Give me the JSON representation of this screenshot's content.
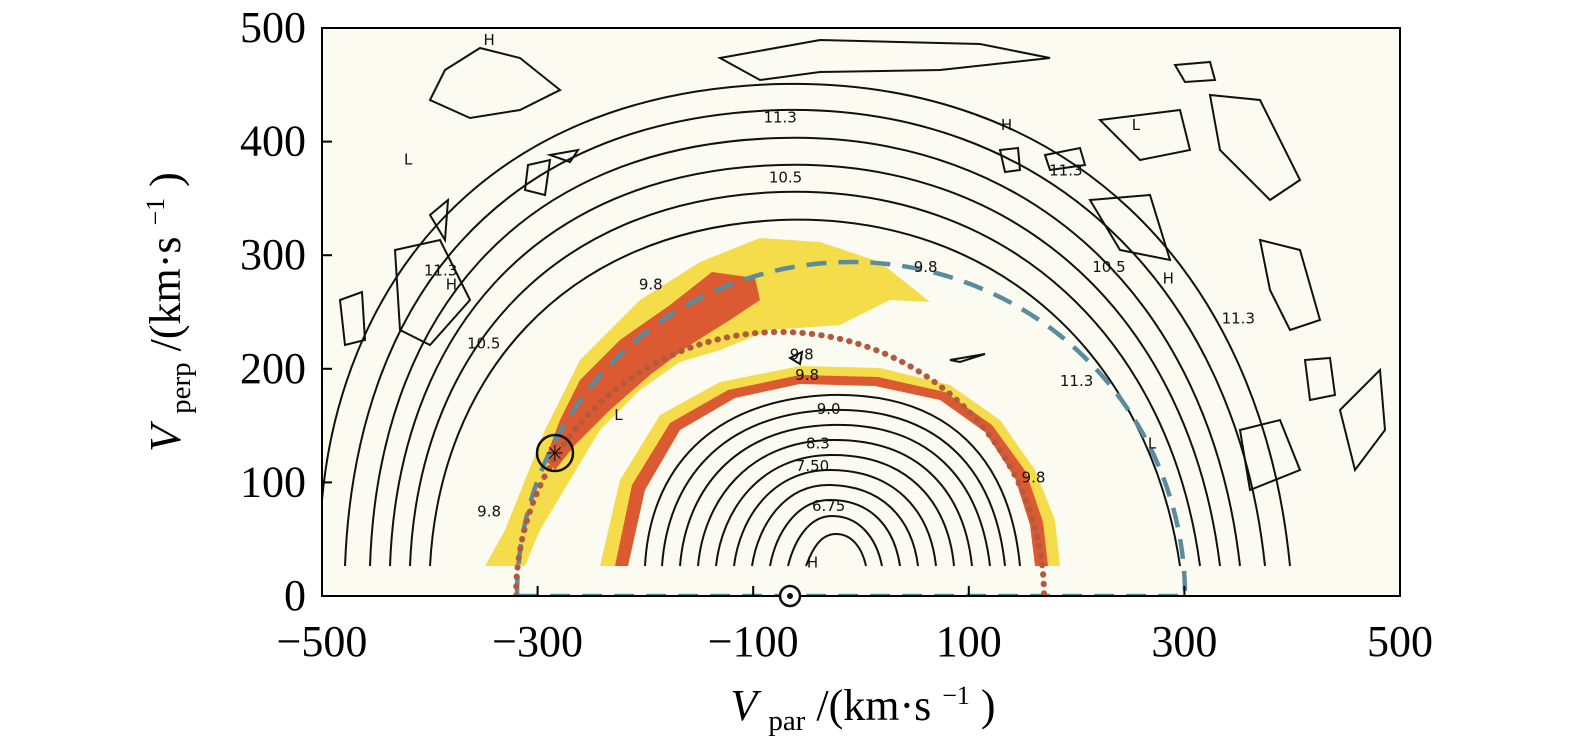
{
  "chart_data": {
    "type": "contour",
    "xlabel_var": "V",
    "xlabel_sub": "par",
    "xlabel_unit_open": "/(km·s",
    "xlabel_unit_sup": "−1",
    "xlabel_unit_close": ")",
    "ylabel_var": "V",
    "ylabel_sub": "perp",
    "ylabel_unit_open": "/(km·s",
    "ylabel_unit_sup": "−1",
    "ylabel_unit_close": ")",
    "xlim": [
      -500,
      500
    ],
    "ylim": [
      0,
      500
    ],
    "xtick_labels": [
      "−500",
      "−300",
      "−100",
      "100",
      "300",
      "500"
    ],
    "xtick_values": [
      -500,
      -300,
      -100,
      100,
      300,
      500
    ],
    "ytick_labels": [
      "0",
      "100",
      "200",
      "300",
      "400",
      "500"
    ],
    "ytick_values": [
      0,
      100,
      200,
      300,
      400,
      500
    ],
    "colors": {
      "plot_background": "#fbfbf2",
      "yellow_band": "#f5dc4a",
      "orange_band": "#dc5a32",
      "dashed_circle": "#5a8c9e",
      "dotted_circle": "#b45a3c"
    },
    "dashed_circle": {
      "center_x": 0,
      "radius": 310,
      "style": "dashed"
    },
    "dotted_circle": {
      "center_x": -60,
      "radius": 245,
      "style": "dotted"
    },
    "markers": [
      {
        "x": -60,
        "y": 0,
        "symbol": "circled-dot"
      },
      {
        "x": -285,
        "y": 123,
        "symbol": "circled-star"
      }
    ],
    "contour_labels": [
      {
        "text": "11.3",
        "x": -75,
        "y": 417
      },
      {
        "text": "10.5",
        "x": -70,
        "y": 364
      },
      {
        "text": "11.3",
        "x": -390,
        "y": 282
      },
      {
        "text": "10.5",
        "x": -350,
        "y": 218
      },
      {
        "text": "9.8",
        "x": -195,
        "y": 270
      },
      {
        "text": "9.8",
        "x": -55,
        "y": 208
      },
      {
        "text": "9.8",
        "x": -50,
        "y": 190
      },
      {
        "text": "9.0",
        "x": -30,
        "y": 160
      },
      {
        "text": "8.3",
        "x": -40,
        "y": 130
      },
      {
        "text": "7.50",
        "x": -45,
        "y": 110
      },
      {
        "text": "6.75",
        "x": -30,
        "y": 75
      },
      {
        "text": "9.8",
        "x": 60,
        "y": 285
      },
      {
        "text": "9.8",
        "x": 160,
        "y": 100
      },
      {
        "text": "9.8",
        "x": -345,
        "y": 70
      },
      {
        "text": "11.3",
        "x": 190,
        "y": 370
      },
      {
        "text": "10.5",
        "x": 230,
        "y": 285
      },
      {
        "text": "11.3",
        "x": 350,
        "y": 240
      },
      {
        "text": "11.3",
        "x": 200,
        "y": 185
      }
    ],
    "region_labels": [
      {
        "text": "H",
        "x": -345,
        "y": 485
      },
      {
        "text": "L",
        "x": -420,
        "y": 380
      },
      {
        "text": "H",
        "x": -380,
        "y": 270
      },
      {
        "text": "H",
        "x": 135,
        "y": 410
      },
      {
        "text": "L",
        "x": 255,
        "y": 410
      },
      {
        "text": "H",
        "x": 285,
        "y": 275
      },
      {
        "text": "L",
        "x": 270,
        "y": 130
      },
      {
        "text": "L",
        "x": -225,
        "y": 155
      },
      {
        "text": "H",
        "x": -45,
        "y": 25
      }
    ]
  }
}
